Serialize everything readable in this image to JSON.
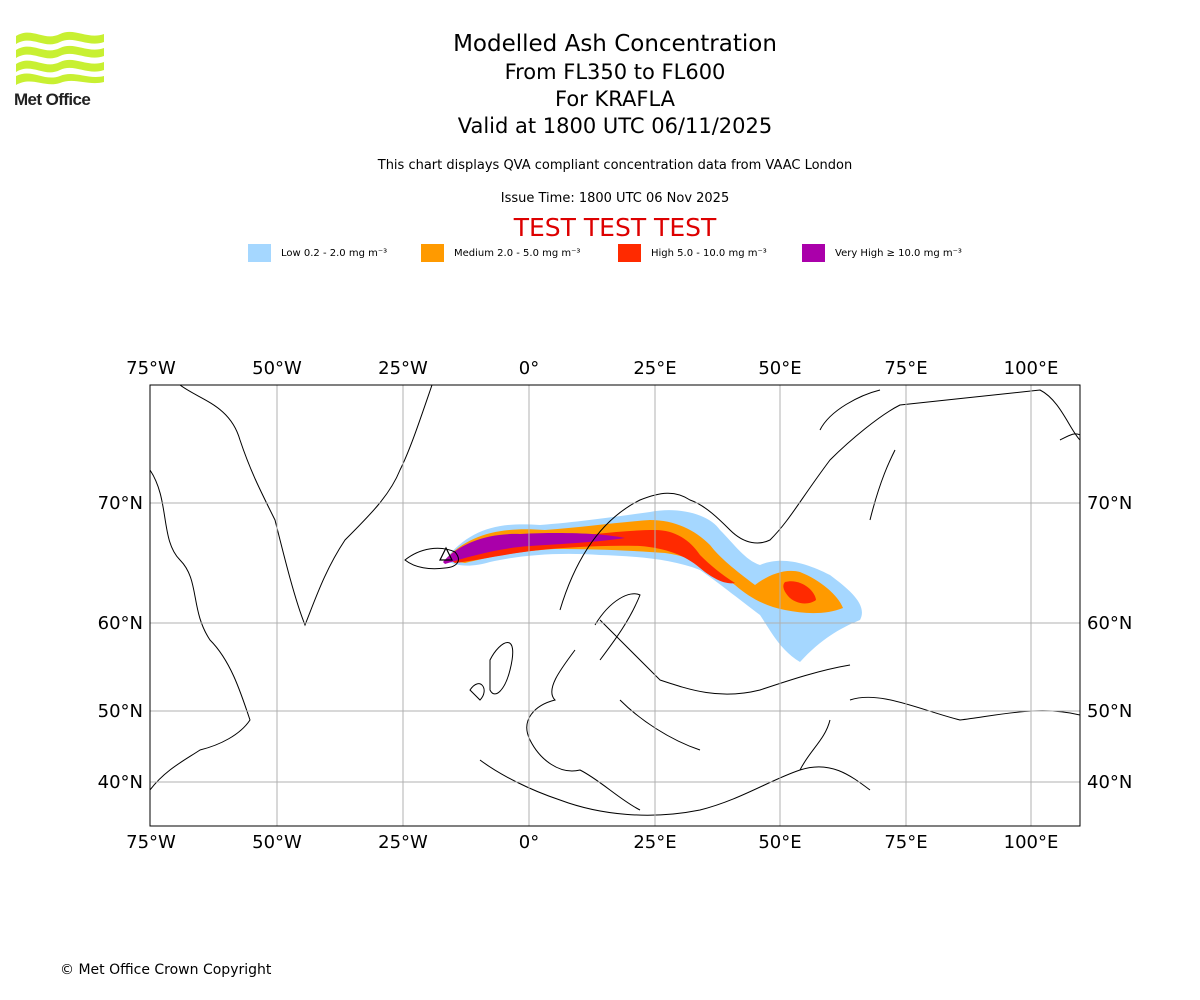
{
  "logo": {
    "text": "Met Office"
  },
  "title": {
    "main": "Modelled Ash Concentration",
    "levels": "From FL350 to FL600",
    "volcano": "For KRAFLA",
    "valid": "Valid at 1800 UTC 06/11/2025"
  },
  "compliance_note": "This chart displays QVA compliant concentration data from VAAC London",
  "issue_time": "Issue Time: 1800 UTC 06 Nov 2025",
  "test_banner": "TEST TEST TEST",
  "legend": [
    {
      "label": "Low 0.2 - 2.0 mg m⁻³",
      "color": "#a5d7ff"
    },
    {
      "label": "Medium 2.0 - 5.0 mg m⁻³",
      "color": "#ff9a00"
    },
    {
      "label": "High 5.0 - 10.0 mg m⁻³",
      "color": "#ff2a00"
    },
    {
      "label": "Very High ≥ 10.0 mg m⁻³",
      "color": "#aa00aa"
    }
  ],
  "map": {
    "lon_ticks": [
      "75°W",
      "50°W",
      "25°W",
      "0°",
      "25°E",
      "50°E",
      "75°E",
      "100°E"
    ],
    "lat_ticks": [
      "70°N",
      "60°N",
      "50°N",
      "40°N"
    ]
  },
  "copyright": "© Met Office Crown Copyright"
}
